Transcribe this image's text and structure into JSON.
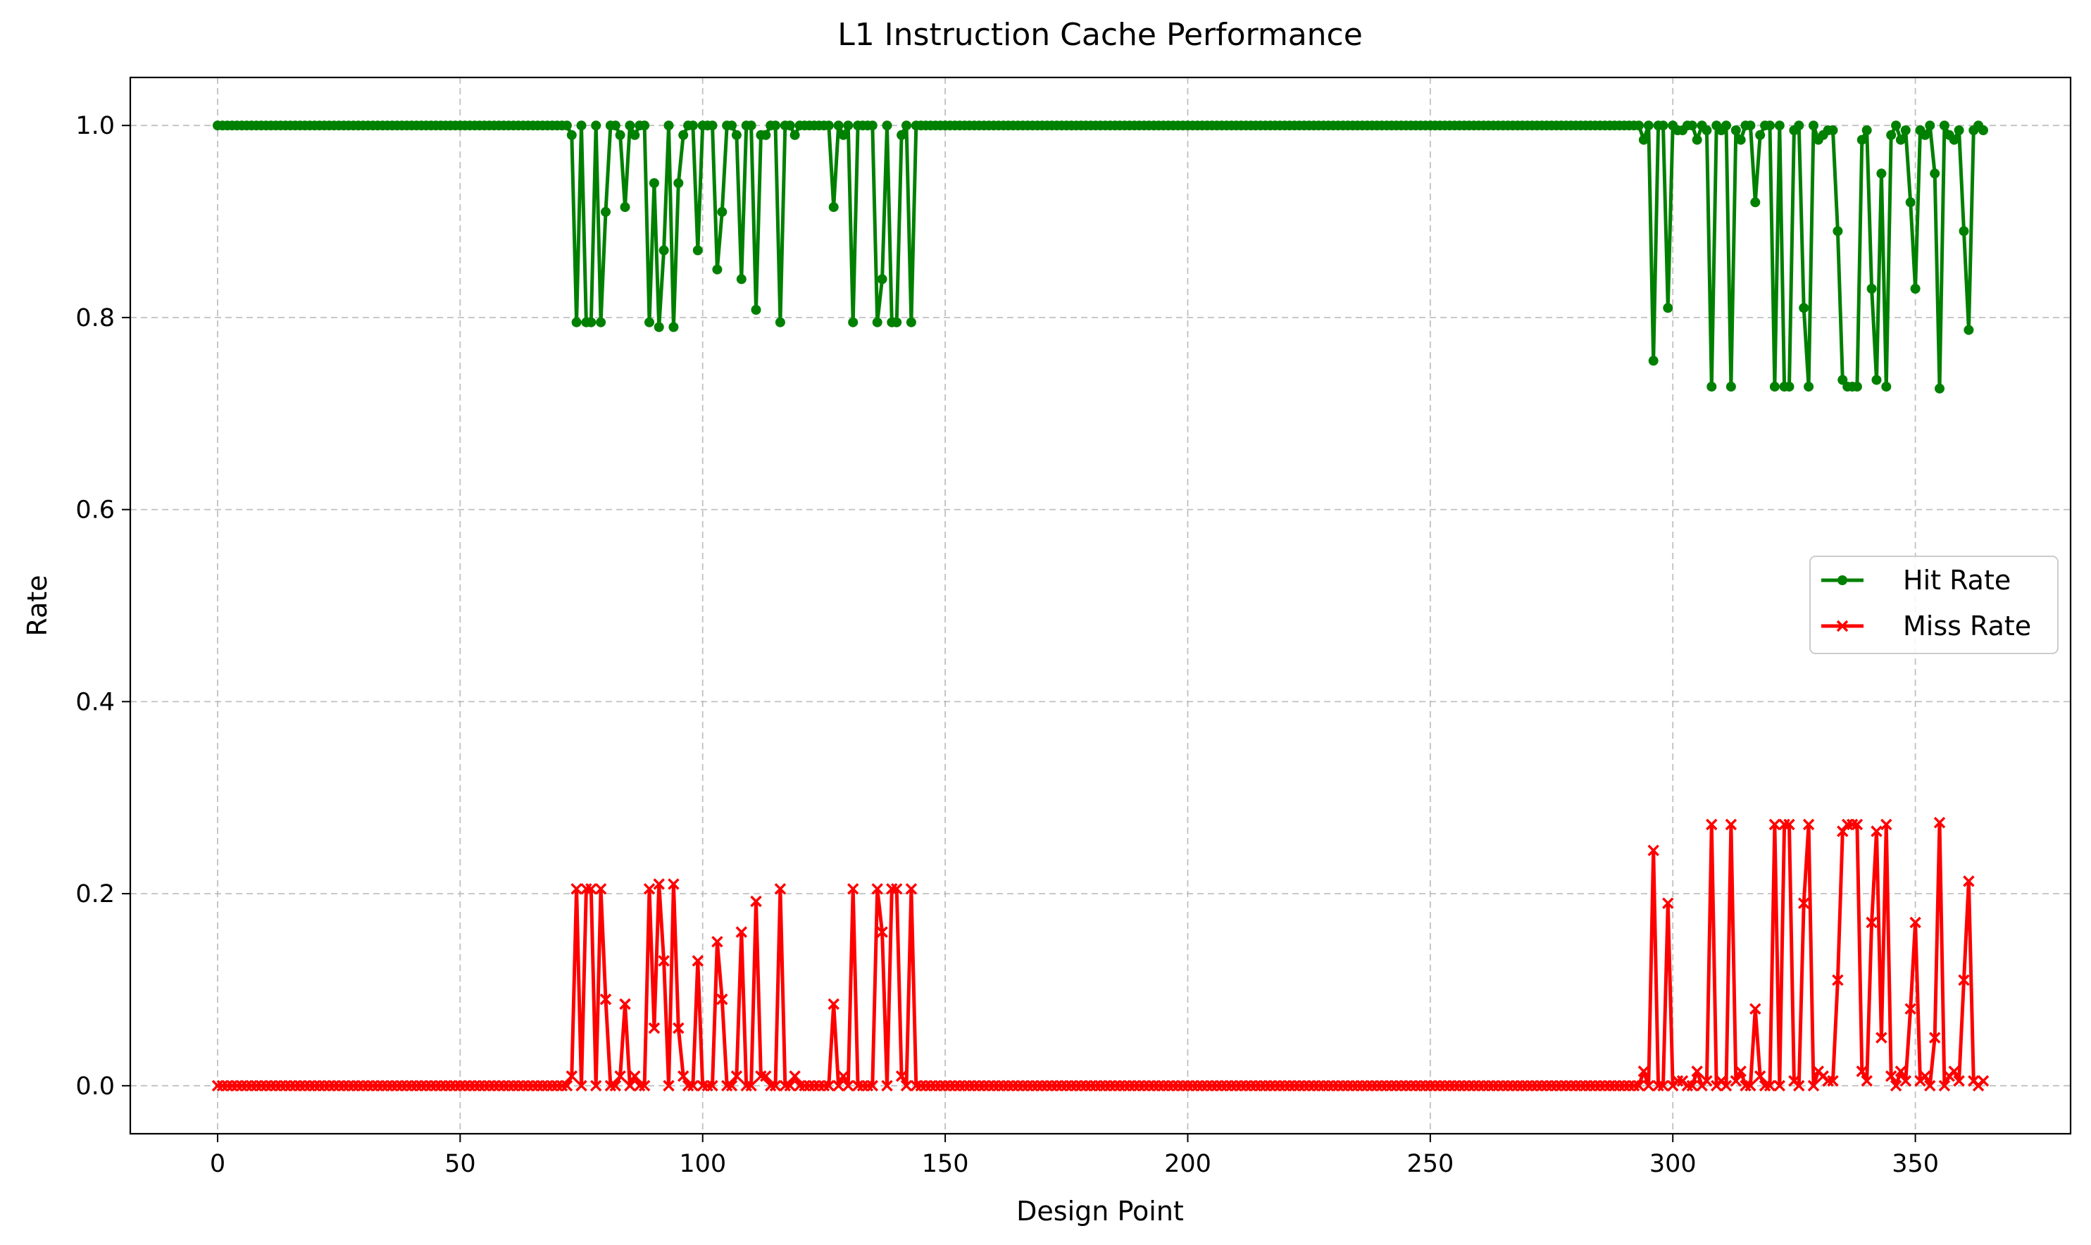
{
  "chart_data": {
    "type": "line",
    "title": "L1 Instruction Cache Performance",
    "xlabel": "Design Point",
    "ylabel": "Rate",
    "xlim": [
      -18,
      382
    ],
    "ylim": [
      -0.05,
      1.05
    ],
    "xticks": [
      0,
      50,
      100,
      150,
      200,
      250,
      300,
      350
    ],
    "yticks": [
      0.0,
      0.2,
      0.4,
      0.6,
      0.8,
      1.0
    ],
    "grid": true,
    "legend_position": "center-right",
    "series": [
      {
        "name": "Hit Rate",
        "color": "#008000",
        "marker": "circle",
        "x_start": 0,
        "x_end": 364,
        "baseline": 1.0,
        "deviations": [
          [
            73,
            0.99
          ],
          [
            74,
            0.795
          ],
          [
            75,
            1.0
          ],
          [
            76,
            0.795
          ],
          [
            77,
            0.795
          ],
          [
            78,
            1.0
          ],
          [
            79,
            0.795
          ],
          [
            80,
            0.91
          ],
          [
            81,
            1.0
          ],
          [
            82,
            1.0
          ],
          [
            83,
            0.99
          ],
          [
            84,
            0.915
          ],
          [
            85,
            1.0
          ],
          [
            86,
            0.99
          ],
          [
            87,
            1.0
          ],
          [
            88,
            1.0
          ],
          [
            89,
            0.795
          ],
          [
            90,
            0.94
          ],
          [
            91,
            0.79
          ],
          [
            92,
            0.87
          ],
          [
            93,
            1.0
          ],
          [
            94,
            0.79
          ],
          [
            95,
            0.94
          ],
          [
            96,
            0.99
          ],
          [
            97,
            1.0
          ],
          [
            98,
            1.0
          ],
          [
            99,
            0.87
          ],
          [
            100,
            1.0
          ],
          [
            101,
            1.0
          ],
          [
            102,
            1.0
          ],
          [
            103,
            0.85
          ],
          [
            104,
            0.91
          ],
          [
            105,
            1.0
          ],
          [
            106,
            1.0
          ],
          [
            107,
            0.99
          ],
          [
            108,
            0.84
          ],
          [
            109,
            1.0
          ],
          [
            110,
            1.0
          ],
          [
            111,
            0.808
          ],
          [
            112,
            0.99
          ],
          [
            113,
            0.99
          ],
          [
            114,
            1.0
          ],
          [
            115,
            1.0
          ],
          [
            116,
            0.795
          ],
          [
            117,
            1.0
          ],
          [
            118,
            1.0
          ],
          [
            119,
            0.99
          ],
          [
            127,
            0.915
          ],
          [
            128,
            1.0
          ],
          [
            129,
            0.99
          ],
          [
            130,
            1.0
          ],
          [
            131,
            0.795
          ],
          [
            132,
            1.0
          ],
          [
            133,
            1.0
          ],
          [
            134,
            1.0
          ],
          [
            135,
            1.0
          ],
          [
            136,
            0.795
          ],
          [
            137,
            0.84
          ],
          [
            138,
            1.0
          ],
          [
            139,
            0.795
          ],
          [
            140,
            0.795
          ],
          [
            141,
            0.99
          ],
          [
            142,
            1.0
          ],
          [
            143,
            0.795
          ],
          [
            294,
            0.985
          ],
          [
            295,
            1.0
          ],
          [
            296,
            0.755
          ],
          [
            297,
            1.0
          ],
          [
            298,
            1.0
          ],
          [
            299,
            0.81
          ],
          [
            300,
            1.0
          ],
          [
            301,
            0.995
          ],
          [
            302,
            0.995
          ],
          [
            303,
            1.0
          ],
          [
            304,
            1.0
          ],
          [
            305,
            0.985
          ],
          [
            306,
            1.0
          ],
          [
            307,
            0.995
          ],
          [
            308,
            0.728
          ],
          [
            309,
            1.0
          ],
          [
            310,
            0.995
          ],
          [
            311,
            1.0
          ],
          [
            312,
            0.728
          ],
          [
            313,
            0.995
          ],
          [
            314,
            0.985
          ],
          [
            315,
            1.0
          ],
          [
            316,
            1.0
          ],
          [
            317,
            0.92
          ],
          [
            318,
            0.99
          ],
          [
            319,
            1.0
          ],
          [
            320,
            1.0
          ],
          [
            321,
            0.728
          ],
          [
            322,
            1.0
          ],
          [
            323,
            0.728
          ],
          [
            324,
            0.728
          ],
          [
            325,
            0.995
          ],
          [
            326,
            1.0
          ],
          [
            327,
            0.81
          ],
          [
            328,
            0.728
          ],
          [
            329,
            1.0
          ],
          [
            330,
            0.985
          ],
          [
            331,
            0.99
          ],
          [
            332,
            0.995
          ],
          [
            333,
            0.995
          ],
          [
            334,
            0.89
          ],
          [
            335,
            0.735
          ],
          [
            336,
            0.728
          ],
          [
            337,
            0.728
          ],
          [
            338,
            0.728
          ],
          [
            339,
            0.985
          ],
          [
            340,
            0.995
          ],
          [
            341,
            0.83
          ],
          [
            342,
            0.735
          ],
          [
            343,
            0.95
          ],
          [
            344,
            0.728
          ],
          [
            345,
            0.99
          ],
          [
            346,
            1.0
          ],
          [
            347,
            0.985
          ],
          [
            348,
            0.995
          ],
          [
            349,
            0.92
          ],
          [
            350,
            0.83
          ],
          [
            351,
            0.995
          ],
          [
            352,
            0.99
          ],
          [
            353,
            1.0
          ],
          [
            354,
            0.95
          ],
          [
            355,
            0.726
          ],
          [
            356,
            1.0
          ],
          [
            357,
            0.99
          ],
          [
            358,
            0.985
          ],
          [
            359,
            0.995
          ],
          [
            360,
            0.89
          ],
          [
            361,
            0.787
          ],
          [
            362,
            0.995
          ],
          [
            363,
            1.0
          ],
          [
            364,
            0.995
          ]
        ]
      },
      {
        "name": "Miss Rate",
        "color": "#ff0000",
        "marker": "x",
        "x_start": 0,
        "x_end": 364,
        "baseline": 0.0,
        "deviations": [
          [
            73,
            0.01
          ],
          [
            74,
            0.205
          ],
          [
            75,
            0.0
          ],
          [
            76,
            0.205
          ],
          [
            77,
            0.205
          ],
          [
            78,
            0.0
          ],
          [
            79,
            0.205
          ],
          [
            80,
            0.09
          ],
          [
            81,
            0.0
          ],
          [
            82,
            0.0
          ],
          [
            83,
            0.01
          ],
          [
            84,
            0.085
          ],
          [
            85,
            0.0
          ],
          [
            86,
            0.01
          ],
          [
            87,
            0.0
          ],
          [
            88,
            0.0
          ],
          [
            89,
            0.205
          ],
          [
            90,
            0.06
          ],
          [
            91,
            0.21
          ],
          [
            92,
            0.13
          ],
          [
            93,
            0.0
          ],
          [
            94,
            0.21
          ],
          [
            95,
            0.06
          ],
          [
            96,
            0.01
          ],
          [
            97,
            0.0
          ],
          [
            98,
            0.0
          ],
          [
            99,
            0.13
          ],
          [
            100,
            0.0
          ],
          [
            101,
            0.0
          ],
          [
            102,
            0.0
          ],
          [
            103,
            0.15
          ],
          [
            104,
            0.09
          ],
          [
            105,
            0.0
          ],
          [
            106,
            0.0
          ],
          [
            107,
            0.01
          ],
          [
            108,
            0.16
          ],
          [
            109,
            0.0
          ],
          [
            110,
            0.0
          ],
          [
            111,
            0.192
          ],
          [
            112,
            0.01
          ],
          [
            113,
            0.01
          ],
          [
            114,
            0.0
          ],
          [
            115,
            0.0
          ],
          [
            116,
            0.205
          ],
          [
            117,
            0.0
          ],
          [
            118,
            0.0
          ],
          [
            119,
            0.01
          ],
          [
            127,
            0.085
          ],
          [
            128,
            0.0
          ],
          [
            129,
            0.01
          ],
          [
            130,
            0.0
          ],
          [
            131,
            0.205
          ],
          [
            132,
            0.0
          ],
          [
            133,
            0.0
          ],
          [
            134,
            0.0
          ],
          [
            135,
            0.0
          ],
          [
            136,
            0.205
          ],
          [
            137,
            0.16
          ],
          [
            138,
            0.0
          ],
          [
            139,
            0.205
          ],
          [
            140,
            0.205
          ],
          [
            141,
            0.01
          ],
          [
            142,
            0.0
          ],
          [
            143,
            0.205
          ],
          [
            294,
            0.015
          ],
          [
            295,
            0.0
          ],
          [
            296,
            0.245
          ],
          [
            297,
            0.0
          ],
          [
            298,
            0.0
          ],
          [
            299,
            0.19
          ],
          [
            300,
            0.0
          ],
          [
            301,
            0.005
          ],
          [
            302,
            0.005
          ],
          [
            303,
            0.0
          ],
          [
            304,
            0.0
          ],
          [
            305,
            0.015
          ],
          [
            306,
            0.0
          ],
          [
            307,
            0.005
          ],
          [
            308,
            0.272
          ],
          [
            309,
            0.0
          ],
          [
            310,
            0.005
          ],
          [
            311,
            0.0
          ],
          [
            312,
            0.272
          ],
          [
            313,
            0.005
          ],
          [
            314,
            0.015
          ],
          [
            315,
            0.0
          ],
          [
            316,
            0.0
          ],
          [
            317,
            0.08
          ],
          [
            318,
            0.01
          ],
          [
            319,
            0.0
          ],
          [
            320,
            0.0
          ],
          [
            321,
            0.272
          ],
          [
            322,
            0.0
          ],
          [
            323,
            0.272
          ],
          [
            324,
            0.272
          ],
          [
            325,
            0.005
          ],
          [
            326,
            0.0
          ],
          [
            327,
            0.19
          ],
          [
            328,
            0.272
          ],
          [
            329,
            0.0
          ],
          [
            330,
            0.015
          ],
          [
            331,
            0.01
          ],
          [
            332,
            0.005
          ],
          [
            333,
            0.005
          ],
          [
            334,
            0.11
          ],
          [
            335,
            0.265
          ],
          [
            336,
            0.272
          ],
          [
            337,
            0.272
          ],
          [
            338,
            0.272
          ],
          [
            339,
            0.015
          ],
          [
            340,
            0.005
          ],
          [
            341,
            0.17
          ],
          [
            342,
            0.265
          ],
          [
            343,
            0.05
          ],
          [
            344,
            0.272
          ],
          [
            345,
            0.01
          ],
          [
            346,
            0.0
          ],
          [
            347,
            0.015
          ],
          [
            348,
            0.005
          ],
          [
            349,
            0.08
          ],
          [
            350,
            0.17
          ],
          [
            351,
            0.005
          ],
          [
            352,
            0.01
          ],
          [
            353,
            0.0
          ],
          [
            354,
            0.05
          ],
          [
            355,
            0.274
          ],
          [
            356,
            0.0
          ],
          [
            357,
            0.01
          ],
          [
            358,
            0.015
          ],
          [
            359,
            0.005
          ],
          [
            360,
            0.11
          ],
          [
            361,
            0.213
          ],
          [
            362,
            0.005
          ],
          [
            363,
            0.0
          ],
          [
            364,
            0.005
          ]
        ]
      }
    ]
  }
}
